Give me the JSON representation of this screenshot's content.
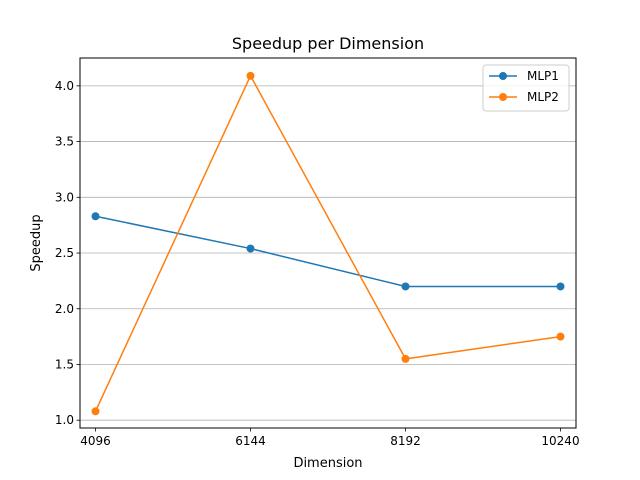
{
  "chart_data": {
    "type": "line",
    "title": "Speedup per Dimension",
    "xlabel": "Dimension",
    "ylabel": "Speedup",
    "categories": [
      "4096",
      "6144",
      "8192",
      "10240"
    ],
    "x": [
      4096,
      6144,
      8192,
      10240
    ],
    "xlim": [
      3891.2,
      10444.8
    ],
    "ylim": [
      0.93,
      4.25
    ],
    "yticks": [
      1.0,
      1.5,
      2.0,
      2.5,
      3.0,
      3.5,
      4.0
    ],
    "ytick_labels": [
      "1.0",
      "1.5",
      "2.0",
      "2.5",
      "3.0",
      "3.5",
      "4.0"
    ],
    "grid": "y-major",
    "legend_position": "top-right",
    "series": [
      {
        "name": "MLP1",
        "color": "#1f77b4",
        "values": [
          2.83,
          2.54,
          2.2,
          2.2
        ]
      },
      {
        "name": "MLP2",
        "color": "#ff7f0e",
        "values": [
          1.08,
          4.09,
          1.55,
          1.75
        ]
      }
    ]
  }
}
